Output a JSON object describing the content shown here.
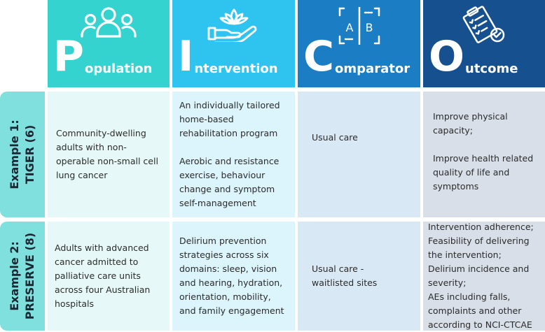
{
  "headers": {
    "population": {
      "initial": "P",
      "rest": "opulation",
      "icon": "people-group-icon"
    },
    "intervention": {
      "initial": "I",
      "rest": "ntervention",
      "icon": "hand-lotus-icon"
    },
    "comparator": {
      "initial": "C",
      "rest": "omparator",
      "icon": "ab-compare-icon"
    },
    "outcome": {
      "initial": "O",
      "rest": "utcome",
      "icon": "clipboard-check-icon"
    }
  },
  "rows": [
    {
      "label_line1": "Example 1:",
      "label_line2": "TIGER (6)",
      "population": "Community-dwelling adults with non-operable non-small cell lung cancer",
      "intervention": [
        "An individually tailored home-based rehabilitation program",
        "Aerobic and resistance exercise, behaviour change and symptom self-management"
      ],
      "comparator": "Usual care",
      "outcome": [
        "Improve physical capacity;",
        "Improve health related quality of life and symptoms"
      ]
    },
    {
      "label_line1": "Example 2:",
      "label_line2": "PRESERVE (8)",
      "population": "Adults with advanced cancer admitted to palliative care units across four Australian hospitals",
      "intervention": [
        "Delirium prevention strategies across six domains: sleep, vision and hearing, hydration, orientation, mobility, and family engagement"
      ],
      "comparator": "Usual care - waitlisted sites",
      "outcome": [
        "Intervention adherence;",
        "Feasibility of delivering the intervention; Delirium incidence and severity;",
        "AEs including falls, complaints and other according to NCI-CTCAE"
      ]
    }
  ],
  "colors": {
    "population": "#35d3cf",
    "intervention": "#2ec4ef",
    "comparator": "#1b7ec5",
    "outcome": "#17508e",
    "row_label": "#7fe0de"
  }
}
